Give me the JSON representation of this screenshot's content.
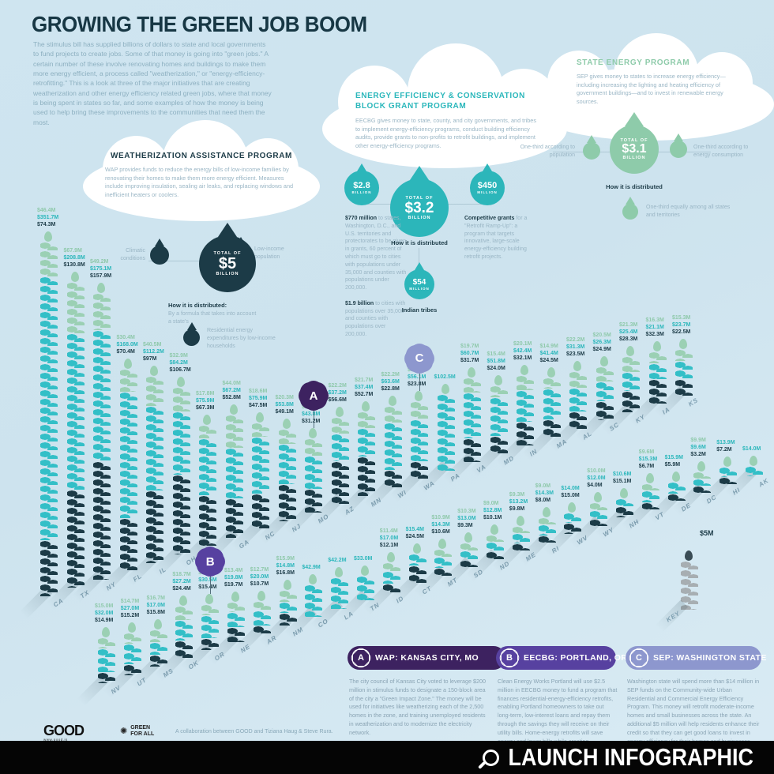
{
  "title": "GROWING THE GREEN JOB BOOM",
  "intro": "The stimulus bill has supplied billions of dollars to state and local governments to fund projects to create jobs. Some of that money is going into \"green jobs.\" A certain number of these involve renovating homes and buildings to make them more energy efficient, a process called \"weatherization,\" or \"energy-efficiency-retrofitting.\" This is a look at three of the major initiatives that are creating weatherization and other energy efficiency related green jobs, where that money is being spent in states so far, and some examples of how the money is being used to help bring these improvements to the communities that need them the most.",
  "programs": {
    "wap": {
      "name": "WEATHERIZATION ASSISTANCE PROGRAM",
      "description": "WAP provides funds to reduce the energy bills of low-income families by renovating their homes to make them more energy efficient. Measures include improving insulation, sealing air leaks, and replacing windows and inefficient heaters or coolers.",
      "total_of": "TOTAL OF",
      "total": "$5",
      "unit": "BILLION",
      "dist_heading": "How it is distributed:",
      "dist_note": "By a formula that takes into account a state's",
      "factor_climate": "Climatic conditions",
      "factor_lowincome": "Low-income population",
      "factor_residential": "Residential energy expenditures by low-income households",
      "color": "#1c3b47"
    },
    "eecbg": {
      "name": "ENERGY EFFICIENCY & CONSERVATION BLOCK GRANT PROGRAM",
      "description": "EECBG gives money to state, county, and city governments, and tribes to implement energy-efficiency programs, conduct building efficiency audits, provide grants to non-profits to retrofit buildings, and implement other energy-efficiency programs.",
      "total_of": "TOTAL OF",
      "total": "$3.2",
      "unit": "BILLION",
      "dist_heading": "How it is distributed",
      "d28_value": "$2.8",
      "d28_unit": "BILLION",
      "d28_note1_lead": "$770 million",
      "d28_note1_rest": " to states, Washington, D.C., and U.S. territories and protectorates to be given in grants, 60 percent of which must go to cities with populations under 35,000 and counties with populations under 200,000.",
      "d28_note2_lead": "$1.9 billion",
      "d28_note2_rest": " to cities with populations over 35,000 and counties with populations over 200,000.",
      "d450_value": "$450",
      "d450_unit": "MILLION",
      "d450_note_lead": "Competitive grants",
      "d450_note_rest": " for a \"Retrofit Ramp-Up\": a program that targets innovative, large-scale energy-efficiency building retrofit projects.",
      "d54_value": "$54",
      "d54_unit": "MILLION",
      "d54_label": "Indian tribes",
      "color": "#2cb6ba"
    },
    "sep": {
      "name": "STATE ENERGY PROGRAM",
      "description": "SEP gives money to states to increase energy efficiency—including increasing the lighting and heating efficiency of government buildings—and to invest in renewable energy sources.",
      "total_of": "TOTAL OF",
      "total": "$3.1",
      "unit": "BILLION",
      "dist_heading": "How it is distributed",
      "factor_population": "One-third according to population",
      "factor_consumption": "One-third according to energy consumption",
      "factor_equal": "One-third equally among all states and territories",
      "color": "#8ecbaa"
    }
  },
  "key": {
    "amount_label": "$5M",
    "caption": "KEY"
  },
  "chart_data": {
    "type": "bar",
    "stacking": "stacked",
    "unit": "USD millions",
    "series_names": [
      "SEP",
      "EECBG",
      "WAP"
    ],
    "series_colors": {
      "sep": "#9bd0b4",
      "eecbg": "#33bfc7",
      "wap": "#1c3b47"
    },
    "label_colors": {
      "sep": "#8fc9ab",
      "eecbg": "#2bb7bb",
      "wap": "#1c3b47"
    },
    "key_note": "one leaf = $5M",
    "row1": [
      {
        "state": "CA",
        "labels": [
          "$46.4M",
          "$351.7M",
          "$74.3M"
        ],
        "values": [
          46.4,
          351.7,
          74.3
        ]
      },
      {
        "state": "TX",
        "labels": [
          "$67.9M",
          "$208.8M",
          "$130.8M"
        ],
        "values": [
          67.9,
          208.8,
          130.8
        ]
      },
      {
        "state": "NY",
        "labels": [
          "$49.2M",
          "$175.1M",
          "$157.9M"
        ],
        "values": [
          49.2,
          175.1,
          157.9
        ]
      },
      {
        "state": "FL",
        "labels": [
          "$30.4M",
          "$168.0M",
          "$70.4M"
        ],
        "values": [
          30.4,
          168.0,
          70.4
        ]
      },
      {
        "state": "IL",
        "labels": [
          "$40.5M",
          "$112.2M",
          "$97M"
        ],
        "values": [
          40.5,
          112.2,
          97.0
        ]
      },
      {
        "state": "OH",
        "labels": [
          "$32.9M",
          "$84.2M",
          "$106.7M"
        ],
        "values": [
          32.9,
          84.2,
          106.7
        ]
      },
      {
        "state": "MI",
        "labels": [
          "$17.8M",
          "$75.9M",
          "$67.3M"
        ],
        "values": [
          17.8,
          75.9,
          67.3
        ]
      },
      {
        "state": "GA",
        "labels": [
          "$44.0M",
          "$67.2M",
          "$52.8M"
        ],
        "values": [
          44.0,
          67.2,
          52.8
        ]
      },
      {
        "state": "NC",
        "labels": [
          "$18.6M",
          "$75.9M",
          "$47.5M"
        ],
        "values": [
          18.6,
          75.9,
          47.5
        ]
      },
      {
        "state": "NJ",
        "labels": [
          "$20.3M",
          "$53.8M",
          "$49.1M"
        ],
        "values": [
          20.3,
          53.8,
          49.1
        ]
      },
      {
        "state": "MO",
        "labels": [
          "$22.9M",
          "$43.8M",
          "$31.2M"
        ],
        "values": [
          22.9,
          43.8,
          31.2
        ]
      },
      {
        "state": "AZ",
        "labels": [
          "$22.2M",
          "$37.2M",
          "$56.6M"
        ],
        "values": [
          22.2,
          37.2,
          56.6
        ]
      },
      {
        "state": "MN",
        "labels": [
          "$21.7M",
          "$37.4M",
          "$52.7M"
        ],
        "values": [
          21.7,
          37.4,
          52.7
        ]
      },
      {
        "state": "WI",
        "labels": [
          "$22.2M",
          "$63.6M",
          "$22.8M"
        ],
        "values": [
          22.2,
          63.6,
          22.8
        ]
      },
      {
        "state": "WA",
        "labels": [
          "$24.2M",
          "$56.1M",
          "$23.8M"
        ],
        "values": [
          24.2,
          56.1,
          23.8
        ]
      },
      {
        "state": "PA",
        "labels": [
          "$102.5M"
        ],
        "values": [
          102.5
        ]
      },
      {
        "state": "VA",
        "labels": [
          "$19.7M",
          "$60.7M",
          "$31.7M"
        ],
        "values": [
          19.7,
          60.7,
          31.7
        ]
      },
      {
        "state": "MD",
        "labels": [
          "$15.4M",
          "$51.8M",
          "$24.0M"
        ],
        "values": [
          15.4,
          51.8,
          24.0
        ]
      },
      {
        "state": "IN",
        "labels": [
          "$20.1M",
          "$42.4M",
          "$32.1M"
        ],
        "values": [
          20.1,
          42.4,
          32.1
        ]
      },
      {
        "state": "MA",
        "labels": [
          "$14.9M",
          "$41.4M",
          "$24.5M"
        ],
        "values": [
          14.9,
          41.4,
          24.5
        ]
      },
      {
        "state": "AL",
        "labels": [
          "$22.2M",
          "$31.3M",
          "$23.5M"
        ],
        "values": [
          22.2,
          31.3,
          23.5
        ]
      },
      {
        "state": "SC",
        "labels": [
          "$20.5M",
          "$26.3M",
          "$24.9M"
        ],
        "values": [
          20.5,
          26.3,
          24.9
        ]
      },
      {
        "state": "KY",
        "labels": [
          "$21.3M",
          "$25.4M",
          "$28.3M"
        ],
        "values": [
          21.3,
          25.4,
          28.3
        ]
      },
      {
        "state": "IA",
        "labels": [
          "$16.3M",
          "$21.1M",
          "$32.3M"
        ],
        "values": [
          16.3,
          21.1,
          32.3
        ]
      },
      {
        "state": "KS",
        "labels": [
          "$15.3M",
          "$23.7M",
          "$22.5M"
        ],
        "values": [
          15.3,
          23.7,
          22.5
        ]
      }
    ],
    "row2": [
      {
        "state": "NV",
        "labels": [
          "$15.0M",
          "$32.0M",
          "$14.9M"
        ],
        "values": [
          15.0,
          32.0,
          14.9
        ]
      },
      {
        "state": "UT",
        "labels": [
          "$14.7M",
          "$27.0M",
          "$15.2M"
        ],
        "values": [
          14.7,
          27.0,
          15.2
        ]
      },
      {
        "state": "MS",
        "labels": [
          "$16.7M",
          "$17.0M",
          "$15.8M"
        ],
        "values": [
          16.7,
          17.0,
          15.8
        ]
      },
      {
        "state": "OK",
        "labels": [
          "$18.7M",
          "$27.2M",
          "$24.4M"
        ],
        "values": [
          18.7,
          27.2,
          24.4
        ]
      },
      {
        "state": "OR",
        "labels": [
          "$14.9M",
          "$30.5M",
          "$15.4M"
        ],
        "values": [
          14.9,
          30.5,
          15.4
        ]
      },
      {
        "state": "NE",
        "labels": [
          "$13.4M",
          "$19.8M",
          "$19.7M"
        ],
        "values": [
          13.4,
          19.8,
          19.7
        ]
      },
      {
        "state": "AR",
        "labels": [
          "$12.7M",
          "$20.0M",
          "$10.7M"
        ],
        "values": [
          12.7,
          20.0,
          10.7
        ]
      },
      {
        "state": "NM",
        "labels": [
          "$15.9M",
          "$14.8M",
          "$16.8M"
        ],
        "values": [
          15.9,
          14.8,
          16.8
        ]
      },
      {
        "state": "CO",
        "labels": [
          "$42.9M"
        ],
        "values": [
          42.9
        ]
      },
      {
        "state": "LA",
        "labels": [
          "$42.2M"
        ],
        "values": [
          42.2
        ]
      },
      {
        "state": "TN",
        "labels": [
          "$33.0M"
        ],
        "values": [
          33.0
        ]
      },
      {
        "state": "ID",
        "labels": [
          "$11.4M",
          "$17.0M",
          "$12.1M"
        ],
        "values": [
          11.4,
          17.0,
          12.1
        ]
      },
      {
        "state": "CT",
        "labels": [
          "$15.4M",
          "$24.5M"
        ],
        "values": [
          15.4,
          24.5
        ]
      },
      {
        "state": "MT",
        "labels": [
          "$10.9M",
          "$14.3M",
          "$10.6M"
        ],
        "values": [
          10.9,
          14.3,
          10.6
        ]
      },
      {
        "state": "SD",
        "labels": [
          "$10.3M",
          "$13.0M",
          "$9.3M"
        ],
        "values": [
          10.3,
          13.0,
          9.3
        ]
      },
      {
        "state": "ND",
        "labels": [
          "$9.0M",
          "$12.8M",
          "$10.1M"
        ],
        "values": [
          9.0,
          12.8,
          10.1
        ]
      },
      {
        "state": "ME",
        "labels": [
          "$9.3M",
          "$13.2M",
          "$9.8M"
        ],
        "values": [
          9.3,
          13.2,
          9.8
        ]
      },
      {
        "state": "RI",
        "labels": [
          "$9.0M",
          "$14.3M",
          "$8.0M"
        ],
        "values": [
          9.0,
          14.3,
          8.0
        ]
      },
      {
        "state": "WV",
        "labels": [
          "$14.0M",
          "$15.0M"
        ],
        "values": [
          14.0,
          15.0
        ]
      },
      {
        "state": "WY",
        "labels": [
          "$10.0M",
          "$12.0M",
          "$4.0M"
        ],
        "values": [
          10.0,
          12.0,
          4.0
        ]
      },
      {
        "state": "NH",
        "labels": [
          "$10.6M",
          "$15.1M"
        ],
        "values": [
          10.6,
          15.1
        ]
      },
      {
        "state": "VT",
        "labels": [
          "$9.6M",
          "$15.3M",
          "$6.7M"
        ],
        "values": [
          9.6,
          15.3,
          6.7
        ]
      },
      {
        "state": "DE",
        "labels": [
          "$15.9M",
          "$5.9M"
        ],
        "values": [
          15.9,
          5.9
        ]
      },
      {
        "state": "DC",
        "labels": [
          "$9.9M",
          "$9.6M",
          "$3.2M"
        ],
        "values": [
          9.9,
          9.6,
          3.2
        ]
      },
      {
        "state": "HI",
        "labels": [
          "$13.9M",
          "$7.2M"
        ],
        "values": [
          13.9,
          7.2
        ]
      },
      {
        "state": "AK",
        "labels": [
          "$14.0M"
        ],
        "values": [
          14.0
        ]
      }
    ],
    "badges": [
      {
        "letter": "A",
        "state": "MO",
        "color": "#3d2260"
      },
      {
        "letter": "B",
        "state": "OR",
        "color": "#5741a0"
      },
      {
        "letter": "C",
        "state": "WA",
        "color": "#8d97ce"
      }
    ]
  },
  "callouts": [
    {
      "letter": "A",
      "title": "WAP: KANSAS CITY, MO",
      "color": "#3d2260",
      "body": "The city council of Kansas City voted to leverage $200 million in stimulus funds to designate a 150-block area of the city a \"Green Impact Zone.\" The money will be used for initiatives like weatherizing each of the 2,500 homes in the zone, and training unemployed residents in weatherization and to modernize the electricity network."
    },
    {
      "letter": "B",
      "title": "EECBG: PORTLAND, OR",
      "color": "#5741a0",
      "body": "Clean Energy Works Portland will use $2.5 million in EECBG money to fund a program that finances residential-energy-efficiency retrofits, enabling Portland homeowners to take out long-term, low-interest loans and repay them through the savings they will receive on their utility bills. Home-energy retrofits will save energy and lower bills while creating construction jobs, ultimately retrofitting 100,000 homes and contributing to the creation"
    },
    {
      "letter": "C",
      "title": "SEP: WASHINGTON STATE",
      "color": "#8d97ce",
      "body": "Washington state will spend more than $14 million in SEP funds on the Community-wide Urban Residential and Commercial Energy Efficiency Program. This money will retrofit moderate-income homes and small businesses across the state. An additional $5 million will help residents enhance their credit so that they can get good loans to invest in energy efficiency for their homes and businesses. This program will complement the statewide"
    }
  ],
  "footer": {
    "good_logo": "GOOD",
    "good_sub": "www.good.is",
    "gfa_line1": "GREEN",
    "gfa_line2": "FOR ALL",
    "collab": "A collaboration between GOOD and Tiziana Haug & Steve Rura.",
    "launch": "LAUNCH INFOGRAPHIC"
  }
}
